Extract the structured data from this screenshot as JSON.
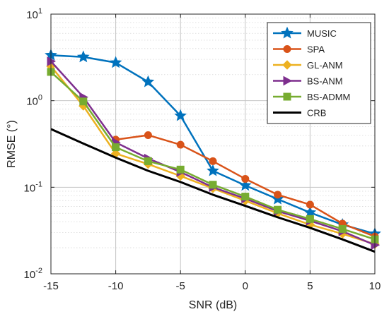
{
  "chart_data": {
    "type": "line",
    "xlabel": "SNR (dB)",
    "ylabel": "RMSE (°)",
    "xlim": [
      -15,
      10
    ],
    "ylim": [
      0.01,
      10
    ],
    "yscale": "log",
    "grid": true,
    "legend_position": "top-right",
    "x": [
      -15,
      -12.5,
      -10,
      -7.5,
      -5,
      -2.5,
      0,
      2.5,
      5,
      7.5,
      10
    ],
    "x_tick_values": [
      -15,
      -10,
      -5,
      0,
      5,
      10
    ],
    "x_tick_labels": [
      "-15",
      "-10",
      "-5",
      "0",
      "5",
      "10"
    ],
    "y_ticks": [
      {
        "value": 0.01,
        "base": "10",
        "exp": "-2"
      },
      {
        "value": 0.1,
        "base": "10",
        "exp": "-1"
      },
      {
        "value": 1,
        "base": "10",
        "exp": "0"
      },
      {
        "value": 10,
        "base": "10",
        "exp": "1"
      }
    ],
    "series": [
      {
        "name": "MUSIC",
        "color": "#0072bd",
        "marker": "star",
        "values": [
          3.35,
          3.2,
          2.75,
          1.65,
          0.67,
          0.155,
          0.105,
          0.073,
          0.051,
          0.037,
          0.029
        ]
      },
      {
        "name": "SPA",
        "color": "#d95319",
        "marker": "circle",
        "values": [
          null,
          null,
          0.355,
          0.4,
          0.31,
          0.2,
          0.125,
          0.082,
          0.063,
          0.038,
          0.027
        ]
      },
      {
        "name": "GL-ANM",
        "color": "#edb120",
        "marker": "diamond",
        "values": [
          2.5,
          0.87,
          0.245,
          0.185,
          0.135,
          0.097,
          0.07,
          0.05,
          0.037,
          0.029,
          0.022
        ]
      },
      {
        "name": "BS-ANM",
        "color": "#7e2f8e",
        "marker": "triangle-right",
        "values": [
          2.85,
          1.1,
          0.33,
          0.215,
          0.15,
          0.1,
          0.074,
          0.053,
          0.041,
          0.031,
          0.0215
        ]
      },
      {
        "name": "BS-ADMM",
        "color": "#77ac30",
        "marker": "square",
        "values": [
          2.15,
          0.98,
          0.29,
          0.2,
          0.16,
          0.107,
          0.078,
          0.055,
          0.043,
          0.033,
          0.025
        ]
      },
      {
        "name": "CRB",
        "color": "#000000",
        "marker": "none",
        "values": [
          0.47,
          0.32,
          0.22,
          0.155,
          0.115,
          0.082,
          0.061,
          0.045,
          0.034,
          0.025,
          0.018
        ]
      }
    ]
  }
}
